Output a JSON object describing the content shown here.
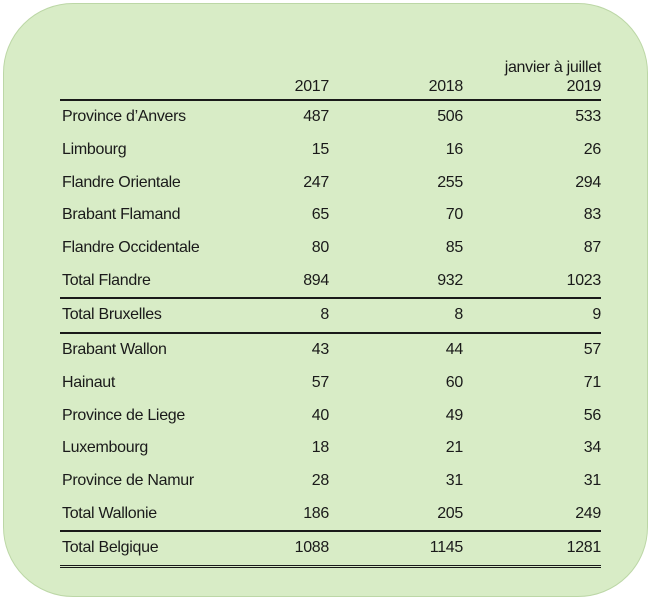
{
  "header": {
    "col1": "2017",
    "col2": "2018",
    "col3_line1": "janvier à juillet",
    "col3_line2": "2019"
  },
  "rows": [
    {
      "label": "Province d’Anvers",
      "v2017": "487",
      "v2018": "506",
      "v2019": "533"
    },
    {
      "label": "Limbourg",
      "v2017": "15",
      "v2018": "16",
      "v2019": "26"
    },
    {
      "label": "Flandre Orientale",
      "v2017": "247",
      "v2018": "255",
      "v2019": "294"
    },
    {
      "label": "Brabant Flamand",
      "v2017": "65",
      "v2018": "70",
      "v2019": "83"
    },
    {
      "label": "Flandre Occidentale",
      "v2017": "80",
      "v2018": "85",
      "v2019": "87"
    },
    {
      "label": "Total Flandre",
      "v2017": "894",
      "v2018": "932",
      "v2019": "1023"
    },
    {
      "label": "Total Bruxelles",
      "v2017": "8",
      "v2018": "8",
      "v2019": "9"
    },
    {
      "label": "Brabant Wallon",
      "v2017": "43",
      "v2018": "44",
      "v2019": "57"
    },
    {
      "label": "Hainaut",
      "v2017": "57",
      "v2018": "60",
      "v2019": "71"
    },
    {
      "label": "Province de Liege",
      "v2017": "40",
      "v2018": "49",
      "v2019": "56"
    },
    {
      "label": "Luxembourg",
      "v2017": "18",
      "v2018": "21",
      "v2019": "34"
    },
    {
      "label": "Province de Namur",
      "v2017": "28",
      "v2018": "31",
      "v2019": "31"
    },
    {
      "label": "Total Wallonie",
      "v2017": "186",
      "v2018": "205",
      "v2019": "249"
    },
    {
      "label": "Total Belgique",
      "v2017": "1088",
      "v2018": "1145",
      "v2019": "1281"
    }
  ],
  "colors": {
    "background": "#d8ecc6",
    "text": "#1a1a1a"
  }
}
